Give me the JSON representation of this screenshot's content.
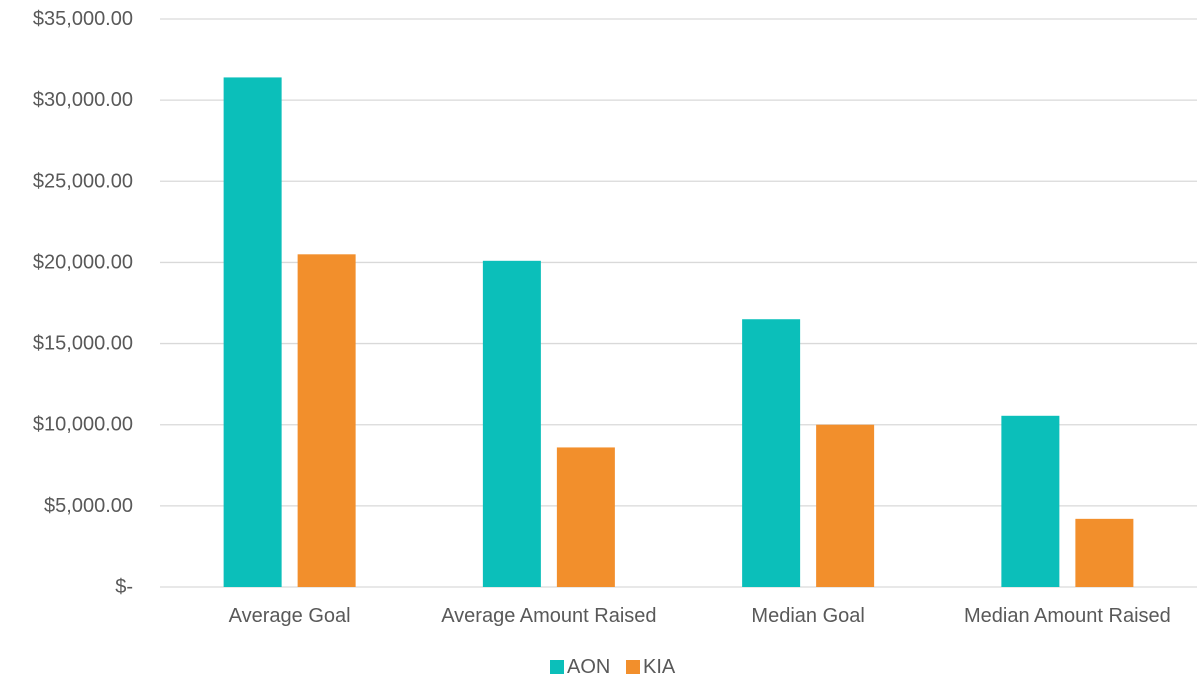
{
  "chart_data": {
    "type": "bar",
    "title": "",
    "xlabel": "",
    "ylabel": "",
    "categories": [
      "Average Goal",
      "Average Amount Raised",
      "Median Goal",
      "Median Amount Raised"
    ],
    "series": [
      {
        "name": "AON",
        "color": "#0BBFBA",
        "values": [
          31400,
          20100,
          16500,
          10550
        ]
      },
      {
        "name": "KIA",
        "color": "#F28F2C",
        "values": [
          20500,
          8600,
          10000,
          4200
        ]
      }
    ],
    "ylim": [
      0,
      35000
    ],
    "y_ticks": [
      {
        "value": 0,
        "label": "$-"
      },
      {
        "value": 5000,
        "label": "$5,000.00"
      },
      {
        "value": 10000,
        "label": "$10,000.00"
      },
      {
        "value": 15000,
        "label": "$15,000.00"
      },
      {
        "value": 20000,
        "label": "$20,000.00"
      },
      {
        "value": 25000,
        "label": "$25,000.00"
      },
      {
        "value": 30000,
        "label": "$30,000.00"
      },
      {
        "value": 35000,
        "label": "$35,000.00"
      }
    ],
    "grid": true,
    "legend_position": "bottom-center"
  }
}
